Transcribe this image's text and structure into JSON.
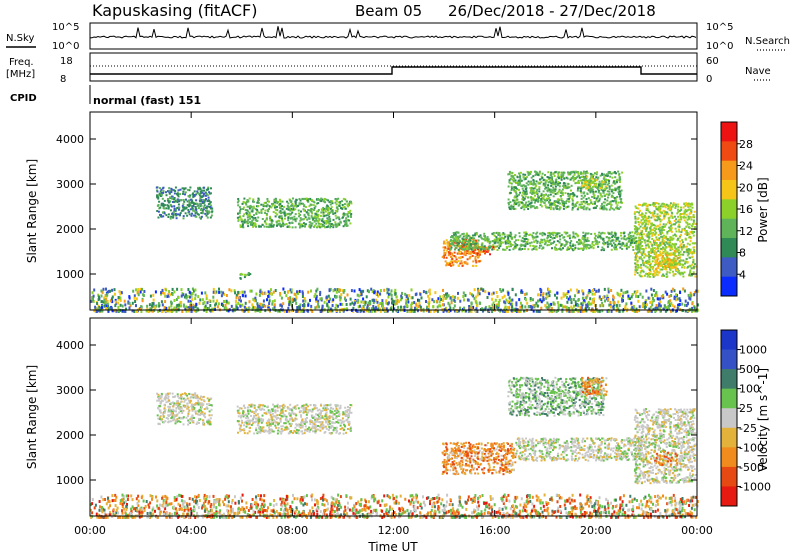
{
  "header": {
    "station": "Kapuskasing (fitACF)",
    "beam": "Beam 05",
    "date_range": "26/Dec/2018 - 27/Dec/2018"
  },
  "top_panels": {
    "nsky_label": "N.Sky",
    "nsky_ticks": [
      "10^5",
      "10^0"
    ],
    "nsearch_label": "N.Search",
    "nsearch_ticks": [
      "10^5",
      "10^0"
    ],
    "freq_label": "Freq.",
    "freq_unit": "[MHz]",
    "freq_ticks": [
      "18",
      "8"
    ],
    "nave_label": "Nave",
    "nave_ticks": [
      "60",
      "0"
    ],
    "cpid_label": "CPID",
    "cpid_value": "normal (fast) 151"
  },
  "colors": {
    "power_scale": [
      "#0a2cff",
      "#3d5bc2",
      "#2f8a56",
      "#5fb45a",
      "#8bd12a",
      "#f5c518",
      "#f59a1a",
      "#ee4a12",
      "#ee1313"
    ],
    "velocity_scale": [
      "#1b36c9",
      "#3551c6",
      "#3f7c6a",
      "#68c24e",
      "#c8c8c8",
      "#e3b23a",
      "#f08c1e",
      "#e64a12",
      "#e61a10"
    ]
  },
  "chart_data": [
    {
      "type": "heatmap",
      "name": "power",
      "ylabel": "Slant Range [km]",
      "yticks": [
        1000,
        2000,
        3000,
        4000
      ],
      "ylim": [
        200,
        4600
      ],
      "xlim": [
        0,
        24
      ],
      "colorbar_label": "Power [dB]",
      "colorbar_ticks": [
        "4",
        "8",
        "12",
        "16",
        "20",
        "24",
        "28"
      ],
      "colorbar_range": [
        0,
        32
      ],
      "regions": [
        {
          "t0": 2.6,
          "t1": 4.8,
          "r0": 2250,
          "r1": 2950,
          "level": 6
        },
        {
          "t0": 5.8,
          "t1": 10.3,
          "r0": 2050,
          "r1": 2700,
          "level": 10
        },
        {
          "t0": 5.9,
          "t1": 6.3,
          "r0": 900,
          "r1": 1050,
          "level": 10
        },
        {
          "t0": 13.9,
          "t1": 15.4,
          "r0": 1200,
          "r1": 1800,
          "level": 24
        },
        {
          "t0": 14.6,
          "t1": 16.0,
          "r0": 1450,
          "r1": 1650,
          "level": 28
        },
        {
          "t0": 14.2,
          "t1": 21.8,
          "r0": 1550,
          "r1": 1950,
          "level": 12
        },
        {
          "t0": 16.5,
          "t1": 21.0,
          "r0": 2450,
          "r1": 3300,
          "level": 10
        },
        {
          "t0": 19.4,
          "t1": 20.4,
          "r0": 2900,
          "r1": 3200,
          "level": 14
        },
        {
          "t0": 21.5,
          "t1": 23.9,
          "r0": 950,
          "r1": 2600,
          "level": 14
        },
        {
          "t0": 22.3,
          "t1": 23.2,
          "r0": 1100,
          "r1": 1600,
          "level": 20
        },
        {
          "t0": 0.0,
          "t1": 24.0,
          "r0": 200,
          "r1": 700,
          "level": 10
        }
      ]
    },
    {
      "type": "heatmap",
      "name": "velocity",
      "ylabel": "Slant Range [km]",
      "yticks": [
        1000,
        2000,
        3000,
        4000
      ],
      "ylim": [
        200,
        4600
      ],
      "xlim": [
        0,
        24
      ],
      "xlabel": "Time UT",
      "xticks": [
        "00:00",
        "04:00",
        "08:00",
        "12:00",
        "16:00",
        "20:00",
        "00:00"
      ],
      "colorbar_label": "Velocity [m s^-1]",
      "colorbar_ticks": [
        "1000",
        "500",
        "100",
        "25",
        "-25",
        "-100",
        "-500",
        "-1000"
      ],
      "regions": [
        {
          "t0": 2.6,
          "t1": 4.8,
          "r0": 2250,
          "r1": 2950,
          "level": 4
        },
        {
          "t0": 5.8,
          "t1": 10.3,
          "r0": 2050,
          "r1": 2700,
          "level": 4
        },
        {
          "t0": 13.9,
          "t1": 16.8,
          "r0": 1150,
          "r1": 1850,
          "level": 6
        },
        {
          "t0": 16.8,
          "t1": 21.8,
          "r0": 1450,
          "r1": 1950,
          "level": 4
        },
        {
          "t0": 16.5,
          "t1": 20.3,
          "r0": 2450,
          "r1": 3300,
          "level": 3
        },
        {
          "t0": 19.4,
          "t1": 20.4,
          "r0": 2900,
          "r1": 3300,
          "level": 6
        },
        {
          "t0": 21.5,
          "t1": 23.9,
          "r0": 950,
          "r1": 2600,
          "level": 4
        },
        {
          "t0": 22.3,
          "t1": 23.2,
          "r0": 1350,
          "r1": 1650,
          "level": 6
        },
        {
          "t0": 0.0,
          "t1": 24.0,
          "r0": 200,
          "r1": 700,
          "level": 5
        }
      ]
    }
  ]
}
